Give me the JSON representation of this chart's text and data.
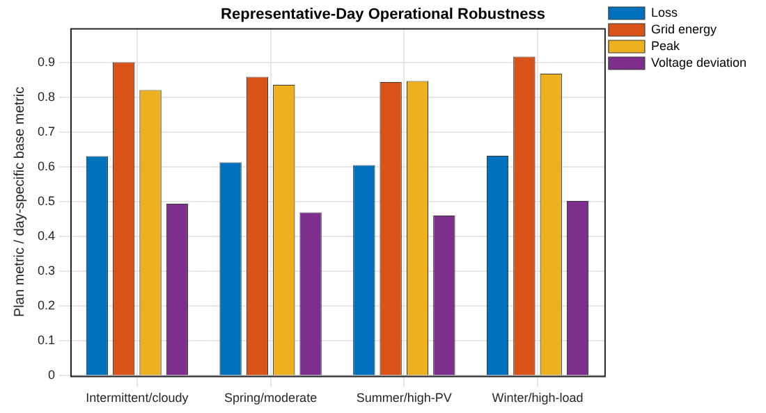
{
  "chart_data": {
    "type": "bar",
    "title": "Representative-Day Operational Robustness",
    "ylabel": "Plan metric / day-specific base metric",
    "categories": [
      "Intermittent/cloudy",
      "Spring/moderate",
      "Summer/high-PV",
      "Winter/high-load"
    ],
    "series": [
      {
        "name": "Loss",
        "color": "#0072bd",
        "values": [
          0.632,
          0.614,
          0.606,
          0.633
        ]
      },
      {
        "name": "Grid energy",
        "color": "#d95319",
        "values": [
          0.902,
          0.86,
          0.845,
          0.918
        ]
      },
      {
        "name": "Peak",
        "color": "#edb120",
        "values": [
          0.822,
          0.837,
          0.848,
          0.869
        ]
      },
      {
        "name": "Voltage deviation",
        "color": "#7e2f8e",
        "values": [
          0.495,
          0.47,
          0.461,
          0.503
        ]
      }
    ],
    "ylim": [
      0,
      1
    ],
    "yticks": [
      0,
      0.1,
      0.2,
      0.3,
      0.4,
      0.5,
      0.6,
      0.7,
      0.8,
      0.9
    ],
    "grid": true,
    "legend": "top right"
  }
}
